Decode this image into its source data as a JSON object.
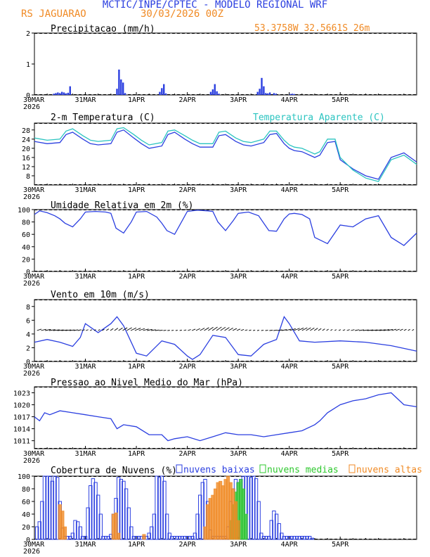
{
  "header": {
    "title": "MCTIC/INPE/CPTEC - MODELO REGIONAL WRF",
    "station": "RS JAGUARAO",
    "run": "30/03/2026 00Z",
    "coords": "53.3758W 32.5661S 26m"
  },
  "xaxis": {
    "labels": [
      "30MAR",
      "31MAR",
      "1APR",
      "2APR",
      "3APR",
      "4APR",
      "5APR"
    ],
    "year": "2026",
    "days": 7.5
  },
  "colors": {
    "blue": "#2b3fe0",
    "cyan": "#2bc4c0",
    "orange": "#f08a24",
    "green": "#2ec82e",
    "title": "#2b3fe0"
  },
  "chart_data": [
    {
      "id": "precip",
      "type": "bar",
      "title": "Precipitacao (mm/h)",
      "ylim": [
        0,
        2
      ],
      "yticks": [
        "0",
        "1",
        "2"
      ],
      "x": [
        0.38,
        0.42,
        0.46,
        0.5,
        0.54,
        0.58,
        0.62,
        0.66,
        0.7,
        1.62,
        1.66,
        1.7,
        1.74,
        1.78,
        2.46,
        2.5,
        2.54,
        2.58,
        3.46,
        3.5,
        3.54,
        3.58,
        3.62,
        4.38,
        4.42,
        4.46,
        4.5,
        4.54,
        4.58,
        4.62,
        4.7,
        4.74,
        5.02,
        5.06,
        5.1
      ],
      "values": [
        0.04,
        0.06,
        0.08,
        0.06,
        0.1,
        0.08,
        0.05,
        0.07,
        0.28,
        0.2,
        0.82,
        0.5,
        0.4,
        0.06,
        0.1,
        0.22,
        0.35,
        0.05,
        0.1,
        0.18,
        0.35,
        0.12,
        0.04,
        0.1,
        0.2,
        0.55,
        0.28,
        0.06,
        0.05,
        0.08,
        0.06,
        0.04,
        0.03,
        0.04,
        0.03
      ]
    },
    {
      "id": "temp",
      "type": "line",
      "title": "2-m Temperatura (C)",
      "legend": "Temperatura Aparente (C)",
      "ylim": [
        4,
        31
      ],
      "yticks": [
        "8",
        "12",
        "16",
        "20",
        "24",
        "28"
      ],
      "series": [
        {
          "name": "2-m Temperatura (C)",
          "x": [
            0,
            0.25,
            0.5,
            0.62,
            0.75,
            0.95,
            1.1,
            1.25,
            1.5,
            1.62,
            1.75,
            1.95,
            2.1,
            2.25,
            2.5,
            2.62,
            2.75,
            2.95,
            3.1,
            3.25,
            3.5,
            3.62,
            3.75,
            3.95,
            4.1,
            4.25,
            4.5,
            4.62,
            4.75,
            4.9,
            5.0,
            5.1,
            5.25,
            5.4,
            5.5,
            5.6,
            5.75,
            5.9,
            6.0,
            6.25,
            6.5,
            6.75,
            7.0,
            7.25,
            7.5
          ],
          "values": [
            23,
            22,
            22.5,
            26,
            27,
            24,
            22,
            21.5,
            22,
            27,
            28,
            24.5,
            22,
            20,
            21,
            26,
            27,
            24,
            22,
            20.5,
            20.5,
            25.5,
            26,
            23,
            21.5,
            21,
            22.5,
            26,
            26.5,
            22,
            20,
            19,
            18.5,
            17,
            16,
            17,
            22.5,
            23,
            15,
            11,
            8,
            6.5,
            16,
            18,
            14
          ]
        },
        {
          "name": "Temperatura Aparente (C)",
          "x": [
            0,
            0.25,
            0.5,
            0.62,
            0.75,
            0.95,
            1.1,
            1.25,
            1.5,
            1.62,
            1.75,
            1.95,
            2.1,
            2.25,
            2.5,
            2.62,
            2.75,
            2.95,
            3.1,
            3.25,
            3.5,
            3.62,
            3.75,
            3.95,
            4.1,
            4.25,
            4.5,
            4.62,
            4.75,
            4.9,
            5.0,
            5.1,
            5.25,
            5.4,
            5.5,
            5.6,
            5.75,
            5.9,
            6.0,
            6.25,
            6.5,
            6.75,
            7.0,
            7.25,
            7.5
          ],
          "values": [
            24.5,
            23.5,
            24,
            27.5,
            28.5,
            25.5,
            23.5,
            23,
            23.5,
            28.5,
            29,
            26,
            23.5,
            21.5,
            22.5,
            27.5,
            28,
            25.5,
            23.5,
            22,
            22,
            27,
            27.5,
            24.5,
            23,
            22.5,
            24,
            27.5,
            27.5,
            23.5,
            21.5,
            20.5,
            20,
            18.5,
            17.5,
            18.5,
            24,
            24,
            16,
            10.5,
            7,
            5.5,
            15,
            17,
            13
          ]
        }
      ]
    },
    {
      "id": "umid",
      "type": "line",
      "title": "Umidade Relativa em 2m (%)",
      "ylim": [
        0,
        100
      ],
      "yticks": [
        "0",
        "20",
        "40",
        "60",
        "80",
        "100"
      ],
      "series": [
        {
          "name": "Umidade Relativa em 2m (%)",
          "x": [
            0,
            0.1,
            0.25,
            0.4,
            0.5,
            0.6,
            0.75,
            0.9,
            1.0,
            1.2,
            1.4,
            1.5,
            1.6,
            1.75,
            1.9,
            2.0,
            2.2,
            2.4,
            2.5,
            2.6,
            2.75,
            2.9,
            3.0,
            3.2,
            3.4,
            3.5,
            3.6,
            3.75,
            3.9,
            4.0,
            4.2,
            4.4,
            4.5,
            4.6,
            4.75,
            4.9,
            5.0,
            5.1,
            5.25,
            5.4,
            5.5,
            5.75,
            6.0,
            6.25,
            6.5,
            6.75,
            7.0,
            7.25,
            7.5
          ],
          "values": [
            92,
            98,
            95,
            90,
            85,
            78,
            72,
            85,
            96,
            97,
            96,
            94,
            70,
            62,
            80,
            96,
            97,
            88,
            78,
            66,
            60,
            82,
            97,
            99,
            98,
            97,
            80,
            66,
            82,
            94,
            96,
            90,
            78,
            66,
            65,
            85,
            93,
            94,
            92,
            85,
            55,
            45,
            75,
            72,
            85,
            90,
            55,
            42,
            62
          ]
        }
      ]
    },
    {
      "id": "vento",
      "type": "line",
      "title": "Vento em 10m (m/s)",
      "ylim": [
        0,
        9
      ],
      "yticks": [
        "0",
        "2",
        "4",
        "6",
        "8"
      ],
      "series": [
        {
          "name": "Vento em 10m (m/s)",
          "x": [
            0,
            0.25,
            0.5,
            0.75,
            0.9,
            1.0,
            1.25,
            1.5,
            1.62,
            1.75,
            2.0,
            2.2,
            2.5,
            2.75,
            3.0,
            3.1,
            3.25,
            3.5,
            3.75,
            4.0,
            4.25,
            4.5,
            4.75,
            4.9,
            5.0,
            5.2,
            5.5,
            6.0,
            6.5,
            7.0,
            7.5
          ],
          "values": [
            2.8,
            3.2,
            2.8,
            2.2,
            3.5,
            5.5,
            4.2,
            5.5,
            6.5,
            5.2,
            1.2,
            0.8,
            3.0,
            2.5,
            0.8,
            0.3,
            1.0,
            3.8,
            3.5,
            1.0,
            0.8,
            2.5,
            3.2,
            6.5,
            5.5,
            3.0,
            2.8,
            3.0,
            2.8,
            2.3,
            1.5
          ]
        }
      ]
    },
    {
      "id": "pressao",
      "type": "line",
      "title": "Pressao ao Nivel Medio do Mar (hPa)",
      "ylim": [
        1009,
        1024.5
      ],
      "yticks": [
        "1011",
        "1014",
        "1017",
        "1020",
        "1023"
      ],
      "series": [
        {
          "name": "Pressao ao Nivel Medio do Mar (hPa)",
          "x": [
            0,
            0.1,
            0.2,
            0.3,
            0.5,
            0.75,
            1.0,
            1.25,
            1.5,
            1.62,
            1.75,
            2.0,
            2.25,
            2.5,
            2.62,
            2.75,
            3.0,
            3.25,
            3.5,
            3.75,
            4.0,
            4.25,
            4.5,
            4.75,
            5.0,
            5.25,
            5.5,
            5.6,
            5.75,
            6.0,
            6.25,
            6.5,
            6.75,
            7.0,
            7.25,
            7.5
          ],
          "values": [
            1017,
            1016,
            1018,
            1017.5,
            1018.5,
            1018,
            1017.5,
            1017,
            1016.5,
            1014,
            1015,
            1014.5,
            1012.5,
            1012.5,
            1011,
            1011.5,
            1012,
            1011,
            1012,
            1013,
            1012.5,
            1012.5,
            1012,
            1012.5,
            1013,
            1013.5,
            1015,
            1016,
            1018,
            1020,
            1021,
            1021.5,
            1022.5,
            1023,
            1020,
            1019.5
          ]
        }
      ]
    },
    {
      "id": "nuvens",
      "type": "bar",
      "title": "Cobertura de Nuvens (%)",
      "legend": [
        "nuvens baixas",
        "nuvens medias",
        "nuvens altas"
      ],
      "ylim": [
        0,
        100
      ],
      "yticks": [
        "0",
        "20",
        "40",
        "60",
        "80",
        "100"
      ],
      "series": [
        {
          "name": "nuvens baixas",
          "x": [
            0.05,
            0.1,
            0.15,
            0.2,
            0.25,
            0.3,
            0.35,
            0.4,
            0.45,
            0.5,
            0.55,
            0.6,
            0.65,
            0.7,
            0.75,
            0.8,
            0.85,
            0.9,
            0.95,
            1.0,
            1.05,
            1.1,
            1.15,
            1.2,
            1.25,
            1.3,
            1.35,
            1.4,
            1.45,
            1.5,
            1.55,
            1.6,
            1.65,
            1.7,
            1.75,
            1.8,
            1.85,
            1.9,
            1.95,
            2.0,
            2.05,
            2.1,
            2.15,
            2.2,
            2.25,
            2.3,
            2.35,
            2.4,
            2.45,
            2.5,
            2.55,
            2.6,
            2.65,
            2.7,
            2.75,
            2.8,
            2.85,
            2.9,
            2.95,
            3.0,
            3.05,
            3.1,
            3.15,
            3.2,
            3.25,
            3.3,
            3.35,
            3.4,
            3.45,
            3.5,
            3.55,
            3.6,
            3.65,
            3.7,
            3.75,
            3.8,
            3.85,
            3.9,
            3.95,
            4.0,
            4.05,
            4.1,
            4.15,
            4.2,
            4.25,
            4.3,
            4.35,
            4.4,
            4.45,
            4.5,
            4.55,
            4.6,
            4.65,
            4.7,
            4.75,
            4.8,
            4.85,
            4.9,
            4.95,
            5.0,
            5.05,
            5.1,
            5.15,
            5.2,
            5.25,
            5.3,
            5.35,
            5.4,
            5.45
          ],
          "values": [
            20,
            28,
            60,
            100,
            100,
            100,
            92,
            100,
            98,
            60,
            18,
            5,
            5,
            5,
            10,
            30,
            28,
            20,
            5,
            5,
            50,
            85,
            96,
            90,
            70,
            40,
            5,
            5,
            5,
            8,
            40,
            65,
            98,
            95,
            92,
            80,
            50,
            20,
            5,
            5,
            5,
            5,
            5,
            5,
            10,
            20,
            40,
            100,
            98,
            100,
            92,
            40,
            10,
            5,
            5,
            5,
            5,
            5,
            5,
            5,
            5,
            5,
            10,
            40,
            70,
            90,
            95,
            60,
            15,
            5,
            5,
            5,
            5,
            5,
            5,
            20,
            60,
            80,
            95,
            90,
            95,
            100,
            100,
            100,
            98,
            100,
            96,
            60,
            10,
            5,
            5,
            5,
            30,
            45,
            40,
            25,
            10,
            5,
            5,
            5,
            5,
            5,
            5,
            5,
            5,
            5,
            5,
            5,
            2
          ]
        },
        {
          "name": "nuvens medias",
          "x": [
            3.85,
            3.9,
            3.95,
            4.0,
            4.05,
            4.1,
            4.15
          ],
          "values": [
            30,
            55,
            75,
            90,
            95,
            80,
            40
          ]
        },
        {
          "name": "nuvens altas",
          "x": [
            0.5,
            0.55,
            0.6,
            1.55,
            1.6,
            1.65,
            2.15,
            3.35,
            3.4,
            3.45,
            3.5,
            3.55,
            3.6,
            3.65,
            3.7,
            3.75,
            3.8,
            3.85,
            3.9,
            3.95,
            4.0
          ],
          "values": [
            55,
            45,
            20,
            40,
            42,
            10,
            8,
            20,
            55,
            65,
            70,
            80,
            90,
            92,
            85,
            95,
            100,
            90,
            80,
            60,
            30
          ]
        }
      ]
    }
  ]
}
